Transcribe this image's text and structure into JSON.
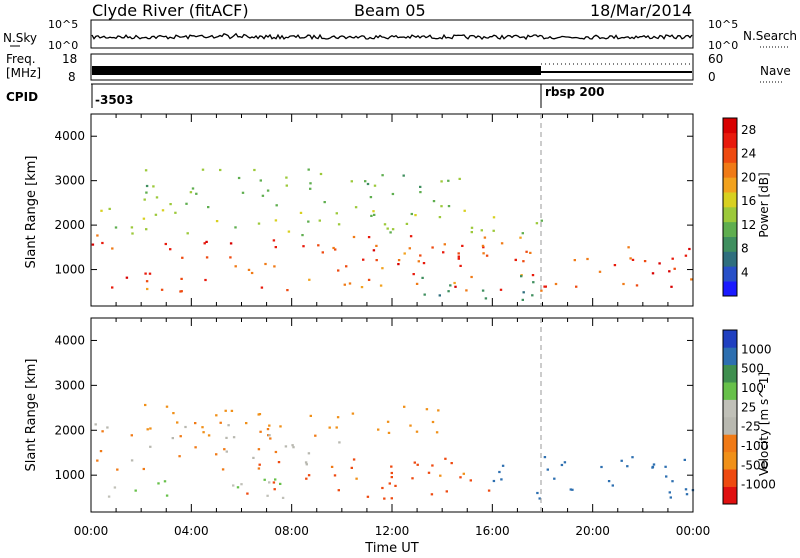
{
  "header": {
    "station": "Clyde River (fitACF)",
    "beam": "Beam 05",
    "date": "18/Mar/2014"
  },
  "summary": {
    "nsky_label": "N.Sky",
    "nsky_ticks": [
      "10^5",
      "10^0"
    ],
    "nsearch_label": "N.Search",
    "nsearch_ticks": [
      "10^5",
      "10^0"
    ],
    "freq_label_1": "Freq.",
    "freq_label_2": "[MHz]",
    "freq_ticks": [
      "18",
      "8"
    ],
    "nave_label": "Nave",
    "nave_ticks": [
      "60",
      "0"
    ],
    "cpid_label": "CPID",
    "cpid_entries": [
      {
        "text": "-3503",
        "hour": 0
      },
      {
        "text": "rbsp 200",
        "hour": 18
      }
    ]
  },
  "time_axis": {
    "label": "Time UT",
    "ticks": [
      "00:00",
      "04:00",
      "08:00",
      "12:00",
      "16:00",
      "20:00",
      "00:00"
    ]
  },
  "chart_data": [
    {
      "type": "heatmap",
      "title": "Power",
      "ylabel": "Slant Range [km]",
      "xlabel": "Time UT",
      "xlim_hours": [
        0,
        24
      ],
      "ylim": [
        180,
        4500
      ],
      "yticks": [
        1000,
        2000,
        3000,
        4000
      ],
      "colorbar": {
        "label": "Power [dB]",
        "ticks": [
          4,
          8,
          12,
          16,
          20,
          24,
          28
        ],
        "range": [
          0,
          30
        ],
        "colors": [
          "#1a1aff",
          "#2850c8",
          "#2f6f7e",
          "#3f8f5f",
          "#5fae4f",
          "#9cc93a",
          "#d8d020",
          "#f2a21e",
          "#f07a16",
          "#ee4a10",
          "#e81a0c",
          "#d80000"
        ]
      },
      "scatter_bands": [
        {
          "h0": 0,
          "h1": 18,
          "r0": 500,
          "r1": 1800,
          "value": 24
        },
        {
          "h0": 0,
          "h1": 18,
          "r0": 1800,
          "r1": 2400,
          "value": 14
        },
        {
          "h0": 2,
          "h1": 15,
          "r0": 2400,
          "r1": 3300,
          "value": 12
        },
        {
          "h0": 18,
          "h1": 24,
          "r0": 600,
          "r1": 1600,
          "value": 25
        },
        {
          "h0": 13,
          "h1": 18,
          "r0": 300,
          "r1": 900,
          "value": 8
        }
      ]
    },
    {
      "type": "heatmap",
      "title": "Velocity",
      "ylabel": "Slant Range [km]",
      "xlabel": "Time UT",
      "xlim_hours": [
        0,
        24
      ],
      "ylim": [
        180,
        4500
      ],
      "yticks": [
        1000,
        2000,
        3000,
        4000
      ],
      "colorbar": {
        "label": "Velocity [m s^-1]",
        "ticks": [
          "1000",
          "500",
          "100",
          "25",
          "-25",
          "-100",
          "-500",
          "-1000"
        ],
        "colors": [
          "#2040c0",
          "#2d6fb0",
          "#3f8f4f",
          "#67c04a",
          "#c0c0b8",
          "#b8b8b0",
          "#f07a16",
          "#f09018",
          "#ee4a10",
          "#e01010"
        ]
      },
      "scatter_bands": [
        {
          "h0": 0,
          "h1": 8,
          "r0": 500,
          "r1": 1000,
          "value": 100
        },
        {
          "h0": 0,
          "h1": 10,
          "r0": 1100,
          "r1": 2200,
          "value": -25
        },
        {
          "h0": 6,
          "h1": 16,
          "r0": 500,
          "r1": 1400,
          "value": -300
        },
        {
          "h0": 16,
          "h1": 24,
          "r0": 500,
          "r1": 1500,
          "value": 800
        },
        {
          "h0": 2,
          "h1": 14,
          "r0": 1900,
          "r1": 2600,
          "value": -200
        }
      ]
    }
  ]
}
